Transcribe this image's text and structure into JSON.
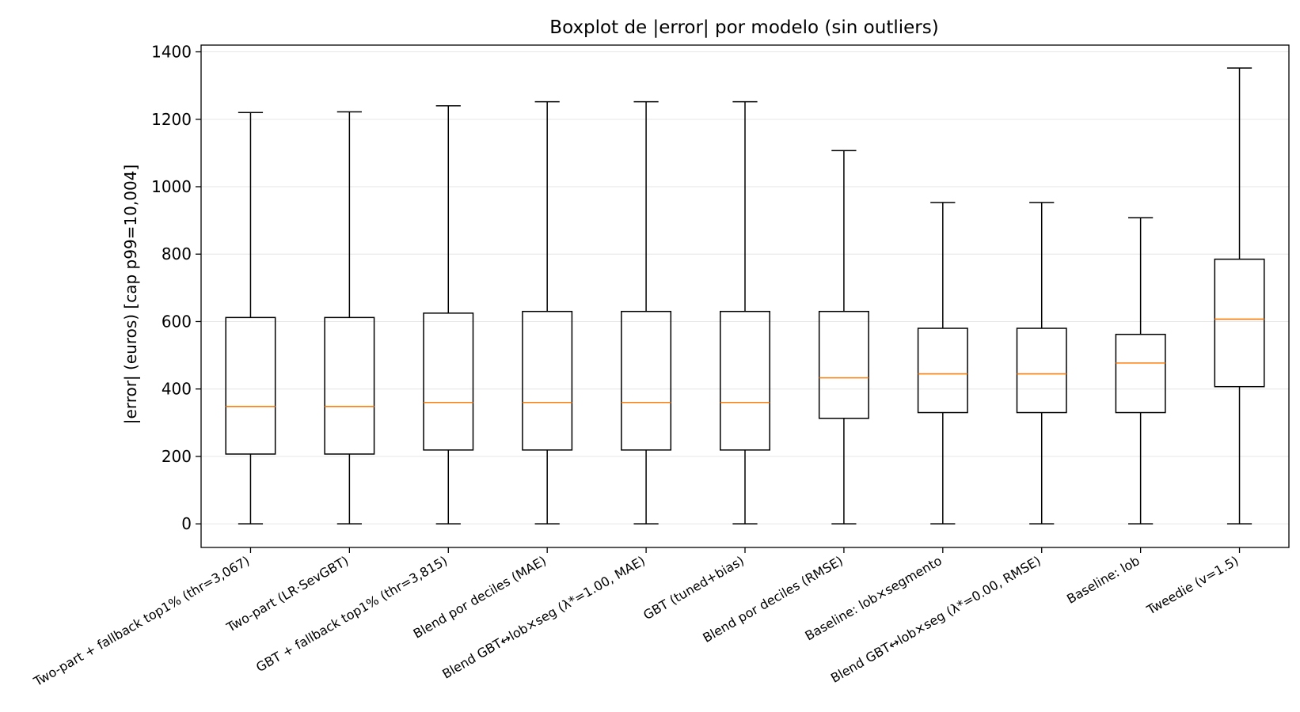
{
  "chart_data": {
    "type": "boxplot",
    "title": "Boxplot de |error| por modelo (sin outliers)",
    "xlabel": "",
    "ylabel": "|error| (euros)  [cap p99=10,004]",
    "ylim": [
      -70,
      1420
    ],
    "yticks": [
      0,
      200,
      400,
      600,
      800,
      1000,
      1200,
      1400
    ],
    "grid": "horizontal",
    "colors": {
      "box": "#000000",
      "median": "#ff7f0e",
      "grid": "#e6e6e6"
    },
    "categories": [
      "Two-part + fallback top1% (thr=3,067)",
      "Two-part (LR·SevGBT)",
      "GBT + fallback top1% (thr=3,815)",
      "Blend por deciles (MAE)",
      "Blend GBT↔lob×seg (λ*=1.00, MAE)",
      "GBT (tuned+bias)",
      "Blend por deciles (RMSE)",
      "Baseline: lob×segmento",
      "Blend GBT↔lob×seg (λ*=0.00, RMSE)",
      "Baseline: lob",
      "Tweedie (v=1.5)"
    ],
    "boxes": [
      {
        "whisker_low": 0,
        "q1": 207,
        "median": 348,
        "q3": 612,
        "whisker_high": 1220
      },
      {
        "whisker_low": 0,
        "q1": 207,
        "median": 348,
        "q3": 612,
        "whisker_high": 1222
      },
      {
        "whisker_low": 0,
        "q1": 219,
        "median": 360,
        "q3": 625,
        "whisker_high": 1240
      },
      {
        "whisker_low": 0,
        "q1": 219,
        "median": 360,
        "q3": 630,
        "whisker_high": 1252
      },
      {
        "whisker_low": 0,
        "q1": 219,
        "median": 360,
        "q3": 630,
        "whisker_high": 1252
      },
      {
        "whisker_low": 0,
        "q1": 219,
        "median": 360,
        "q3": 630,
        "whisker_high": 1252
      },
      {
        "whisker_low": 0,
        "q1": 313,
        "median": 433,
        "q3": 630,
        "whisker_high": 1107
      },
      {
        "whisker_low": 0,
        "q1": 330,
        "median": 445,
        "q3": 580,
        "whisker_high": 953
      },
      {
        "whisker_low": 0,
        "q1": 330,
        "median": 445,
        "q3": 580,
        "whisker_high": 953
      },
      {
        "whisker_low": 0,
        "q1": 330,
        "median": 477,
        "q3": 562,
        "whisker_high": 908
      },
      {
        "whisker_low": 0,
        "q1": 407,
        "median": 607,
        "q3": 785,
        "whisker_high": 1352
      }
    ]
  }
}
